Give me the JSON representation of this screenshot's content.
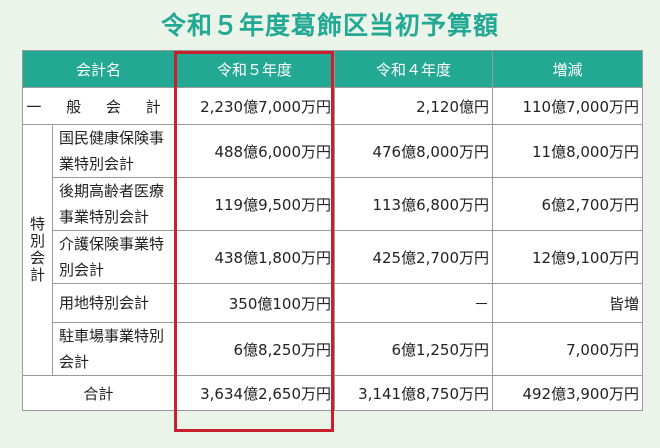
{
  "title": "令和５年度葛飾区当初予算額",
  "headers": [
    "会計名",
    "令和５年度",
    "令和４年度",
    "増減"
  ],
  "general_row": {
    "name": "一 般 会 計",
    "r5": "2,230億7,000万円",
    "r4": "2,120億円",
    "diff": "110億7,000万円"
  },
  "special_label": "特別会計",
  "special_rows": [
    {
      "name": "国民健康保険事業特別会計",
      "r5": "488億6,000万円",
      "r4": "476億8,000万円",
      "diff": "11億8,000万円"
    },
    {
      "name": "後期高齢者医療事業特別会計",
      "r5": "119億9,500万円",
      "r4": "113億6,800万円",
      "diff": "6億2,700万円"
    },
    {
      "name": "介護保険事業特別会計",
      "r5": "438億1,800万円",
      "r4": "425億2,700万円",
      "diff": "12億9,100万円"
    },
    {
      "name": "用地特別会計",
      "r5": "350億100万円",
      "r4": "－",
      "diff": "皆増"
    },
    {
      "name": "駐車場事業特別会計",
      "r5": "6億8,250万円",
      "r4": "6億1,250万円",
      "diff": "7,000万円"
    }
  ],
  "total_row": {
    "name": "合計",
    "r5": "3,634億2,650万円",
    "r4": "3,141億8,750万円",
    "diff": "492億3,900万円"
  },
  "colors": {
    "header_bg": "#23a893",
    "title": "#23a893",
    "highlight": "#c8202e",
    "page_bg": "#eaf4e8"
  }
}
